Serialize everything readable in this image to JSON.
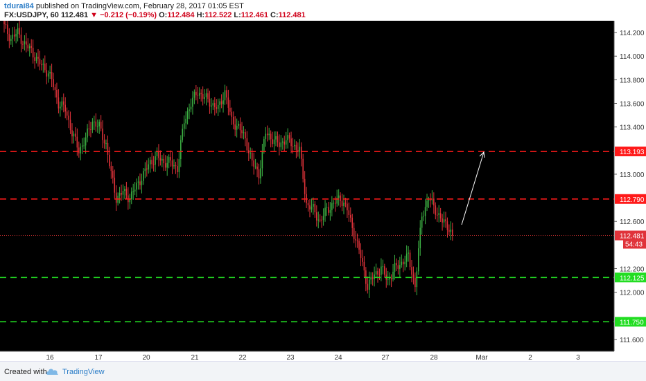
{
  "header": {
    "author": "tdurai84",
    "published": "published on TradingView.com, February 28, 2017 01:05 EST",
    "symbol": "FX:USDJPY, 60",
    "last": "112.481",
    "change": "−0.212 (−0.19%)",
    "o_label": "O:",
    "o_value": "112.484",
    "h_label": "H:",
    "h_value": "112.522",
    "l_label": "L:",
    "l_value": "112.461",
    "c_label": "C:",
    "c_value": "112.481"
  },
  "footer": {
    "created_with": "Created with",
    "brand": "TradingView"
  },
  "colors": {
    "background": "#000000",
    "up_candle": "#3cb043",
    "down_candle": "#e0333a",
    "resistance": "#ff1a1a",
    "support": "#22dd22",
    "current_price": "#ff3b3b"
  },
  "chart_data": {
    "type": "candlestick",
    "ylim": [
      111.5,
      114.3
    ],
    "y_ticks": [
      114.2,
      114.0,
      113.8,
      113.6,
      113.4,
      113.2,
      113.0,
      112.8,
      112.6,
      112.4,
      112.2,
      112.0,
      111.8,
      111.6
    ],
    "x_ticks": [
      "16",
      "17",
      "20",
      "21",
      "22",
      "23",
      "24",
      "27",
      "28",
      "Mar",
      "2",
      "3"
    ],
    "current_price": "112.481",
    "countdown": "54:43",
    "levels": [
      {
        "price": 113.193,
        "label": "113.193",
        "kind": "resistance"
      },
      {
        "price": 112.79,
        "label": "112.790",
        "kind": "resistance"
      },
      {
        "price": 112.125,
        "label": "112.125",
        "kind": "support"
      },
      {
        "price": 111.75,
        "label": "111.750",
        "kind": "support"
      }
    ],
    "close_path": [
      [
        0,
        114.25
      ],
      [
        4,
        114.15
      ],
      [
        8,
        114.2
      ],
      [
        12,
        114.1
      ],
      [
        16,
        114.05
      ],
      [
        20,
        113.95
      ],
      [
        24,
        113.9
      ],
      [
        28,
        113.8
      ],
      [
        32,
        113.6
      ],
      [
        36,
        113.55
      ],
      [
        40,
        113.35
      ],
      [
        44,
        113.2
      ],
      [
        48,
        113.3
      ],
      [
        52,
        113.45
      ],
      [
        56,
        113.4
      ],
      [
        60,
        113.25
      ],
      [
        63,
        113.0
      ],
      [
        66,
        112.8
      ],
      [
        70,
        112.85
      ],
      [
        74,
        112.8
      ],
      [
        78,
        112.9
      ],
      [
        82,
        113.0
      ],
      [
        86,
        113.1
      ],
      [
        90,
        113.15
      ],
      [
        94,
        113.1
      ],
      [
        98,
        113.1
      ],
      [
        102,
        113.05
      ],
      [
        106,
        113.45
      ],
      [
        110,
        113.6
      ],
      [
        114,
        113.7
      ],
      [
        118,
        113.65
      ],
      [
        122,
        113.6
      ],
      [
        126,
        113.55
      ],
      [
        130,
        113.7
      ],
      [
        134,
        113.45
      ],
      [
        138,
        113.4
      ],
      [
        142,
        113.3
      ],
      [
        146,
        113.1
      ],
      [
        150,
        113.0
      ],
      [
        154,
        113.35
      ],
      [
        158,
        113.3
      ],
      [
        162,
        113.25
      ],
      [
        166,
        113.3
      ],
      [
        170,
        113.25
      ],
      [
        174,
        113.2
      ],
      [
        178,
        112.75
      ],
      [
        182,
        112.7
      ],
      [
        186,
        112.6
      ],
      [
        190,
        112.7
      ],
      [
        194,
        112.75
      ],
      [
        198,
        112.8
      ],
      [
        202,
        112.7
      ],
      [
        206,
        112.5
      ],
      [
        210,
        112.3
      ],
      [
        214,
        112.05
      ],
      [
        218,
        112.15
      ],
      [
        222,
        112.2
      ],
      [
        226,
        112.1
      ],
      [
        230,
        112.2
      ],
      [
        234,
        112.25
      ],
      [
        238,
        112.3
      ],
      [
        242,
        112.05
      ],
      [
        246,
        112.65
      ],
      [
        250,
        112.8
      ],
      [
        254,
        112.7
      ],
      [
        258,
        112.6
      ],
      [
        262,
        112.55
      ],
      [
        264,
        112.481
      ]
    ]
  }
}
